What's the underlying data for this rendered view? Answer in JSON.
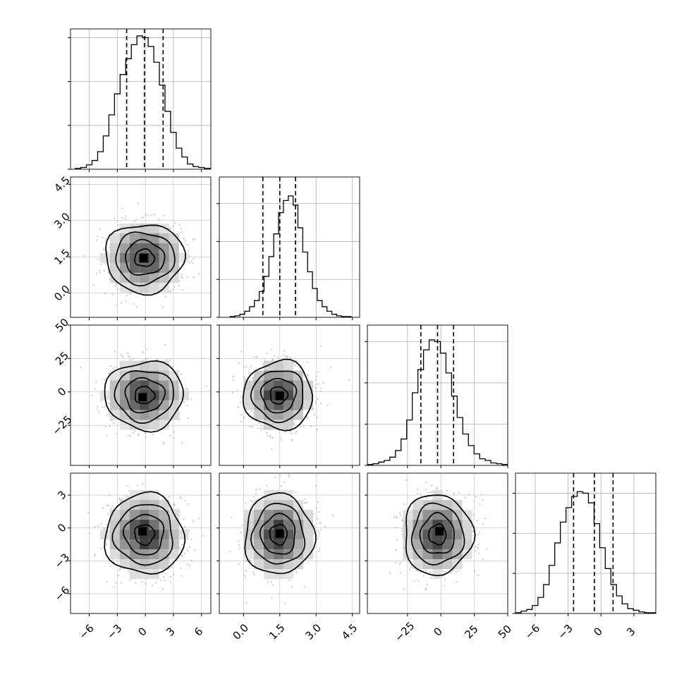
{
  "chart_data": {
    "type": "corner",
    "grid": true,
    "n_params": 4,
    "quantiles": [
      0.16,
      0.5,
      0.84
    ],
    "params": [
      {
        "range": [
          -8.0,
          7.0
        ],
        "ticks": [
          -6,
          -3,
          0,
          3,
          6
        ],
        "tick_labels": [
          "−6",
          "−3",
          "0",
          "3",
          "6"
        ],
        "quantile_values": [
          -2.0,
          -0.1,
          1.9
        ],
        "hist": {
          "bin_start": -7.5,
          "bin_width": 0.6,
          "counts": [
            1,
            2,
            5,
            10,
            20,
            38,
            62,
            86,
            108,
            126,
            142,
            152,
            150,
            140,
            122,
            96,
            66,
            42,
            24,
            14,
            6,
            3,
            2,
            1,
            1
          ],
          "ylim": [
            0,
            160
          ],
          "yticks": [
            0,
            50,
            100,
            150
          ]
        }
      },
      {
        "range": [
          -1.0,
          4.8
        ],
        "ticks": [
          0.0,
          1.5,
          3.0,
          4.5
        ],
        "tick_labels": [
          "0.0",
          "1.5",
          "3.0",
          "4.5"
        ],
        "quantile_values": [
          0.8,
          1.5,
          2.15
        ],
        "hist": {
          "bin_start": -0.55,
          "bin_width": 0.2,
          "counts": [
            1,
            2,
            4,
            8,
            14,
            22,
            34,
            54,
            80,
            110,
            138,
            154,
            160,
            148,
            118,
            86,
            60,
            38,
            22,
            14,
            8,
            4,
            2,
            1,
            1
          ],
          "ylim": [
            0,
            185
          ],
          "yticks": [
            0,
            50,
            100,
            150
          ]
        }
      },
      {
        "range": [
          -55.0,
          50.0
        ],
        "ticks": [
          -25,
          0,
          25,
          50
        ],
        "tick_labels": [
          "−25",
          "0",
          "25",
          "50"
        ],
        "quantile_values": [
          -15.0,
          -2.5,
          9.5
        ],
        "hist": {
          "bin_start": -55.0,
          "bin_width": 4.2,
          "counts": [
            1,
            2,
            4,
            6,
            10,
            18,
            32,
            55,
            88,
            116,
            140,
            152,
            150,
            136,
            112,
            84,
            58,
            38,
            24,
            14,
            8,
            6,
            3,
            2,
            1
          ],
          "ylim": [
            0,
            170
          ],
          "yticks": [
            0,
            50,
            100,
            150
          ]
        }
      },
      {
        "range": [
          -7.8,
          5.0
        ],
        "ticks": [
          -6,
          -3,
          0,
          3
        ],
        "tick_labels": [
          "−6",
          "−3",
          "0",
          "3"
        ],
        "quantile_values": [
          -2.5,
          -0.6,
          1.1
        ],
        "hist": {
          "bin_start": -7.8,
          "bin_width": 0.512,
          "counts": [
            1,
            3,
            5,
            10,
            20,
            36,
            60,
            88,
            114,
            132,
            146,
            152,
            150,
            138,
            112,
            82,
            56,
            36,
            22,
            12,
            6,
            4,
            2,
            1,
            1
          ],
          "ylim": [
            0,
            175
          ],
          "yticks": [
            0,
            50,
            100,
            150
          ]
        }
      }
    ],
    "pairs": [
      {
        "x_param": 0,
        "y_param": 1,
        "mean": [
          -0.1,
          1.45
        ],
        "std": [
          2.0,
          0.68
        ],
        "peak": [
          -0.2,
          1.45
        ]
      },
      {
        "x_param": 0,
        "y_param": 2,
        "mean": [
          -0.1,
          -2.5
        ],
        "std": [
          2.0,
          12.2
        ],
        "peak": [
          -0.3,
          -4.0
        ]
      },
      {
        "x_param": 1,
        "y_param": 2,
        "mean": [
          1.45,
          -2.5
        ],
        "std": [
          0.68,
          12.2
        ],
        "peak": [
          1.5,
          -3.0
        ]
      },
      {
        "x_param": 0,
        "y_param": 3,
        "mean": [
          -0.1,
          -0.6
        ],
        "std": [
          2.0,
          1.75
        ],
        "peak": [
          -0.3,
          -0.3
        ]
      },
      {
        "x_param": 1,
        "y_param": 3,
        "mean": [
          1.45,
          -0.6
        ],
        "std": [
          0.68,
          1.75
        ],
        "peak": [
          1.5,
          -0.5
        ]
      },
      {
        "x_param": 2,
        "y_param": 3,
        "mean": [
          -2.5,
          -0.6
        ],
        "std": [
          12.2,
          1.75
        ],
        "peak": [
          -1.0,
          -0.3
        ]
      }
    ],
    "contour_levels_sigma": [
      0.5,
      1.0,
      1.5,
      2.0
    ],
    "colors": {
      "line": "#000000",
      "grid": "#b0b0b0",
      "points": "#9a9a9a",
      "density_max": "#000000"
    }
  }
}
